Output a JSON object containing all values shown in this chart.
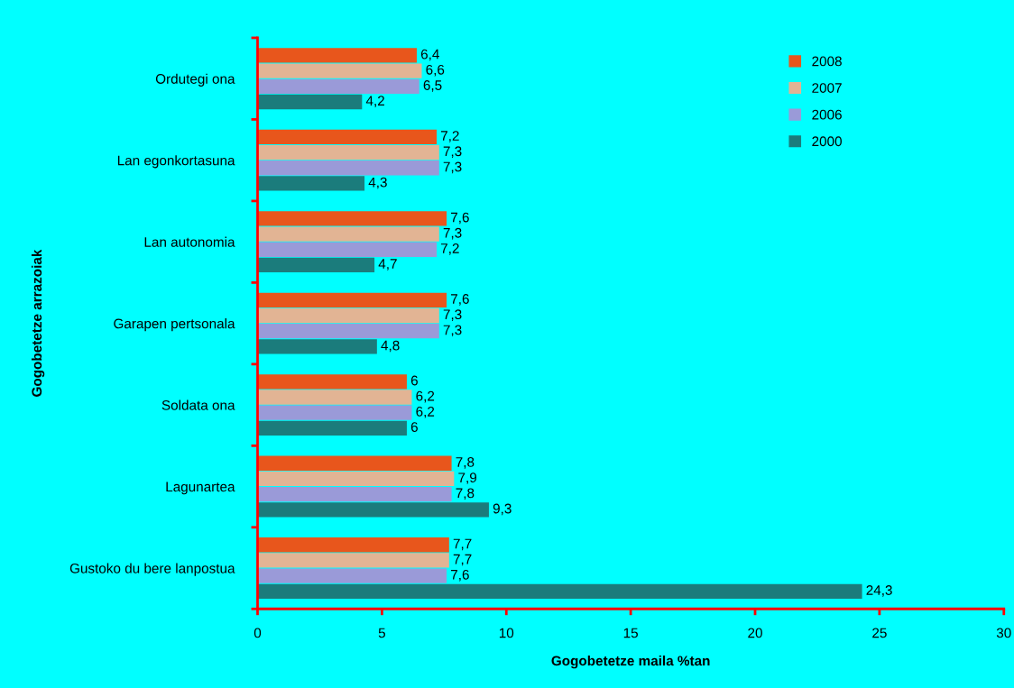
{
  "chart_data": {
    "type": "bar",
    "orientation": "horizontal",
    "xlabel": "Gogobetetze maila %tan",
    "ylabel": "Gogobetetze arrazoiak",
    "categories": [
      "Ordutegi ona",
      "Lan egonkortasuna",
      "Lan autonomia",
      "Garapen pertsonala",
      "Soldata ona",
      "Lagunartea",
      "Gustoko du bere lanpostua"
    ],
    "series": [
      {
        "name": "2008",
        "color": "#e8561c",
        "values": [
          6.4,
          7.2,
          7.6,
          7.6,
          6,
          7.8,
          7.7
        ],
        "value_labels": [
          "6,4",
          "7,2",
          "7,6",
          "7,6",
          "6",
          "7,8",
          "7,7"
        ]
      },
      {
        "name": "2007",
        "color": "#e2b494",
        "values": [
          6.6,
          7.3,
          7.3,
          7.3,
          6.2,
          7.9,
          7.7
        ],
        "value_labels": [
          "6,6",
          "7,3",
          "7,3",
          "7,3",
          "6,2",
          "7,9",
          "7,7"
        ]
      },
      {
        "name": "2006",
        "color": "#9a9ad8",
        "values": [
          6.5,
          7.3,
          7.2,
          7.3,
          6.2,
          7.8,
          7.6
        ],
        "value_labels": [
          "6,5",
          "7,3",
          "7,2",
          "7,3",
          "6,2",
          "7,8",
          "7,6"
        ]
      },
      {
        "name": "2000",
        "color": "#1b7c7c",
        "values": [
          4.2,
          4.3,
          4.7,
          4.8,
          6,
          9.3,
          24.3
        ],
        "value_labels": [
          "4,2",
          "4,3",
          "4,7",
          "4,8",
          "6",
          "9,3",
          "24,3"
        ]
      }
    ],
    "xlim": [
      0,
      30
    ],
    "xticks": [
      0,
      5,
      10,
      15,
      20,
      25,
      30
    ],
    "grid": false,
    "legend": "top right"
  }
}
